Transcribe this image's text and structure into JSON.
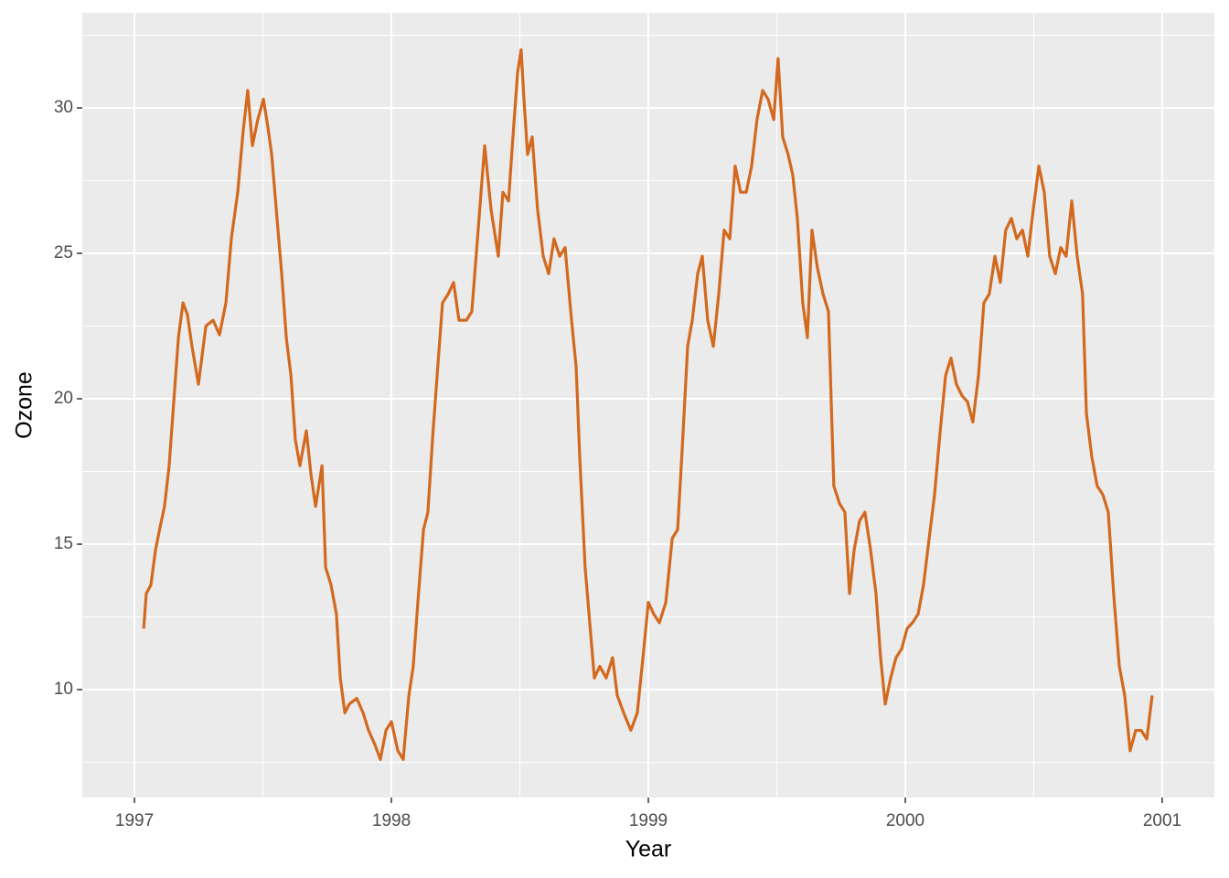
{
  "chart_data": {
    "type": "line",
    "x_label": "Year",
    "y_label": "Ozone",
    "color": "#d2691e",
    "grid": true,
    "xlim": [
      1996.797,
      2001.203
    ],
    "ylim": [
      6.29,
      33.27
    ],
    "xticks": [
      1997,
      1998,
      1999,
      2000,
      2001
    ],
    "yticks": [
      10,
      15,
      20,
      25,
      30
    ],
    "x": [
      1997.036,
      1997.046,
      1997.064,
      1997.082,
      1997.1,
      1997.117,
      1997.135,
      1997.153,
      1997.171,
      1997.189,
      1997.206,
      1997.224,
      1997.249,
      1997.278,
      1997.306,
      1997.331,
      1997.356,
      1997.377,
      1997.402,
      1997.423,
      1997.441,
      1997.459,
      1997.48,
      1997.502,
      1997.52,
      1997.534,
      1997.552,
      1997.573,
      1997.591,
      1997.609,
      1997.626,
      1997.644,
      1997.669,
      1997.687,
      1997.705,
      1997.73,
      1997.744,
      1997.765,
      1997.786,
      1997.801,
      1997.819,
      1997.836,
      1997.865,
      1997.89,
      1997.911,
      1997.936,
      1997.957,
      1997.979,
      1998.0,
      1998.025,
      1998.046,
      1998.068,
      1998.085,
      1998.103,
      1998.125,
      1998.142,
      1998.16,
      1998.178,
      1998.199,
      1998.221,
      1998.242,
      1998.263,
      1998.292,
      1998.313,
      1998.335,
      1998.363,
      1998.388,
      1998.416,
      1998.434,
      1998.456,
      1998.473,
      1998.491,
      1998.505,
      1998.516,
      1998.53,
      1998.548,
      1998.569,
      1998.591,
      1998.612,
      1998.633,
      1998.655,
      1998.676,
      1998.698,
      1998.719,
      1998.733,
      1998.754,
      1998.772,
      1998.79,
      1998.811,
      1998.836,
      1998.861,
      1998.879,
      1998.904,
      1998.932,
      1998.957,
      1998.979,
      1999.0,
      1999.021,
      1999.043,
      1999.068,
      1999.093,
      1999.114,
      1999.132,
      1999.153,
      1999.171,
      1999.192,
      1999.21,
      1999.231,
      1999.253,
      1999.274,
      1999.295,
      1999.317,
      1999.338,
      1999.359,
      1999.381,
      1999.402,
      1999.423,
      1999.445,
      1999.466,
      1999.488,
      1999.505,
      1999.523,
      1999.544,
      1999.562,
      1999.58,
      1999.601,
      1999.619,
      1999.637,
      1999.658,
      1999.68,
      1999.701,
      1999.722,
      1999.744,
      1999.765,
      1999.783,
      1999.801,
      1999.822,
      1999.843,
      1999.865,
      1999.886,
      1999.904,
      1999.922,
      1999.943,
      1999.964,
      1999.986,
      2000.007,
      2000.028,
      2000.05,
      2000.071,
      2000.093,
      2000.114,
      2000.135,
      2000.157,
      2000.178,
      2000.199,
      2000.221,
      2000.242,
      2000.263,
      2000.285,
      2000.306,
      2000.327,
      2000.349,
      2000.37,
      2000.391,
      2000.413,
      2000.434,
      2000.456,
      2000.477,
      2000.498,
      2000.52,
      2000.541,
      2000.562,
      2000.584,
      2000.605,
      2000.626,
      2000.648,
      2000.669,
      2000.69,
      2000.705,
      2000.726,
      2000.747,
      2000.769,
      2000.79,
      2000.811,
      2000.833,
      2000.854,
      2000.875,
      2000.897,
      2000.918,
      2000.94,
      2000.961
    ],
    "values": [
      12.1,
      13.3,
      13.6,
      14.8,
      15.6,
      16.3,
      17.7,
      19.9,
      22.1,
      23.3,
      22.9,
      21.8,
      20.5,
      22.5,
      22.7,
      22.2,
      23.3,
      25.5,
      27.1,
      29.2,
      30.6,
      28.7,
      29.6,
      30.3,
      29.3,
      28.4,
      26.5,
      24.3,
      22.1,
      20.8,
      18.6,
      17.7,
      18.9,
      17.4,
      16.3,
      17.7,
      14.2,
      13.6,
      12.6,
      10.4,
      9.2,
      9.5,
      9.7,
      9.2,
      8.6,
      8.1,
      7.6,
      8.6,
      8.9,
      7.9,
      7.6,
      9.8,
      10.8,
      13.0,
      15.5,
      16.1,
      18.6,
      20.8,
      23.3,
      23.6,
      24.0,
      22.7,
      22.7,
      23.0,
      25.5,
      28.7,
      26.5,
      24.9,
      27.1,
      26.8,
      29.0,
      31.2,
      32.0,
      30.3,
      28.4,
      29.0,
      26.5,
      24.9,
      24.3,
      25.5,
      24.9,
      25.2,
      23.0,
      21.1,
      18.0,
      14.2,
      12.3,
      10.4,
      10.8,
      10.4,
      11.1,
      9.8,
      9.2,
      8.6,
      9.2,
      11.1,
      13.0,
      12.6,
      12.3,
      13.0,
      15.2,
      15.5,
      18.3,
      21.8,
      22.7,
      24.3,
      24.9,
      22.7,
      21.8,
      23.6,
      25.8,
      25.5,
      28.0,
      27.1,
      27.1,
      28.0,
      29.6,
      30.6,
      30.3,
      29.6,
      31.7,
      29.0,
      28.4,
      27.7,
      26.2,
      23.3,
      22.1,
      25.8,
      24.5,
      23.6,
      23.0,
      17.0,
      16.4,
      16.1,
      13.3,
      14.8,
      15.8,
      16.1,
      14.8,
      13.3,
      11.1,
      9.5,
      10.4,
      11.1,
      11.4,
      12.1,
      12.3,
      12.6,
      13.6,
      15.2,
      16.7,
      18.8,
      20.8,
      21.4,
      20.5,
      20.1,
      19.9,
      19.2,
      20.8,
      23.3,
      23.6,
      24.9,
      24.0,
      25.8,
      26.2,
      25.5,
      25.8,
      24.9,
      26.5,
      28.0,
      27.1,
      24.9,
      24.3,
      25.2,
      24.9,
      26.8,
      24.9,
      23.6,
      19.5,
      18.0,
      17.0,
      16.7,
      16.1,
      13.3,
      10.8,
      9.8,
      7.9,
      8.6,
      8.6,
      8.3,
      9.8
    ]
  }
}
